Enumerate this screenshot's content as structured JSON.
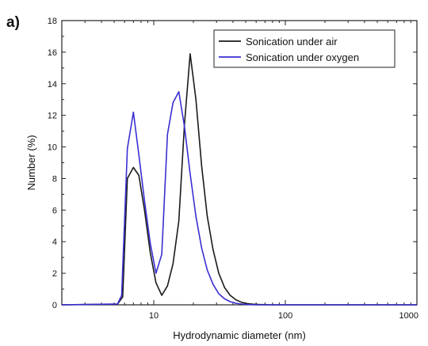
{
  "panel_label": "a)",
  "chart_data": {
    "type": "line",
    "xlabel": "Hydrodynamic diameter (nm)",
    "ylabel": "Number (%)",
    "x_scale": "log",
    "xlim": [
      2,
      1000
    ],
    "ylim": [
      0,
      18
    ],
    "x_ticks": [
      10,
      100,
      1000
    ],
    "x_tick_labels": [
      "10",
      "100",
      "1000"
    ],
    "y_ticks": [
      0,
      2,
      4,
      6,
      8,
      10,
      12,
      14,
      16,
      18
    ],
    "y_tick_labels": [
      "0",
      "2",
      "4",
      "6",
      "8",
      "10",
      "12",
      "14",
      "16",
      "18"
    ],
    "legend_position": "top-right",
    "grid": false,
    "series": [
      {
        "name": "Sonication under air",
        "color": "#1a1a1a",
        "x": [
          2,
          5.3,
          5.8,
          6.3,
          7.0,
          7.7,
          8.5,
          9.4,
          10.4,
          11.5,
          12.7,
          14.0,
          15.5,
          17.1,
          18.9,
          20.9,
          23.1,
          25.5,
          28.2,
          31.2,
          34.5,
          38.1,
          42.1,
          46.5,
          51.4,
          56.8,
          62.8,
          70,
          80,
          1000
        ],
        "y": [
          0,
          0.05,
          0.5,
          8.0,
          8.7,
          8.2,
          6.0,
          3.3,
          1.4,
          0.6,
          1.2,
          2.6,
          5.3,
          11.4,
          15.9,
          13.0,
          8.8,
          5.6,
          3.5,
          2.0,
          1.1,
          0.6,
          0.32,
          0.16,
          0.08,
          0.04,
          0.02,
          0.01,
          0,
          0
        ]
      },
      {
        "name": "Sonication under oxygen",
        "color": "#3a2fd0",
        "x": [
          2,
          5.3,
          5.7,
          6.3,
          7.0,
          7.7,
          8.5,
          9.4,
          10.4,
          11.5,
          12.7,
          14.0,
          15.5,
          17.1,
          18.9,
          20.9,
          23.1,
          25.5,
          28.2,
          31.2,
          34.5,
          38.1,
          42.1,
          46.5,
          51.4,
          60,
          1000
        ],
        "y": [
          0,
          0.05,
          0.6,
          9.9,
          12.2,
          9.5,
          6.6,
          3.9,
          2.0,
          3.2,
          10.8,
          12.8,
          13.5,
          11.3,
          8.3,
          5.6,
          3.6,
          2.2,
          1.3,
          0.7,
          0.38,
          0.2,
          0.1,
          0.05,
          0.02,
          0,
          0
        ]
      }
    ]
  }
}
